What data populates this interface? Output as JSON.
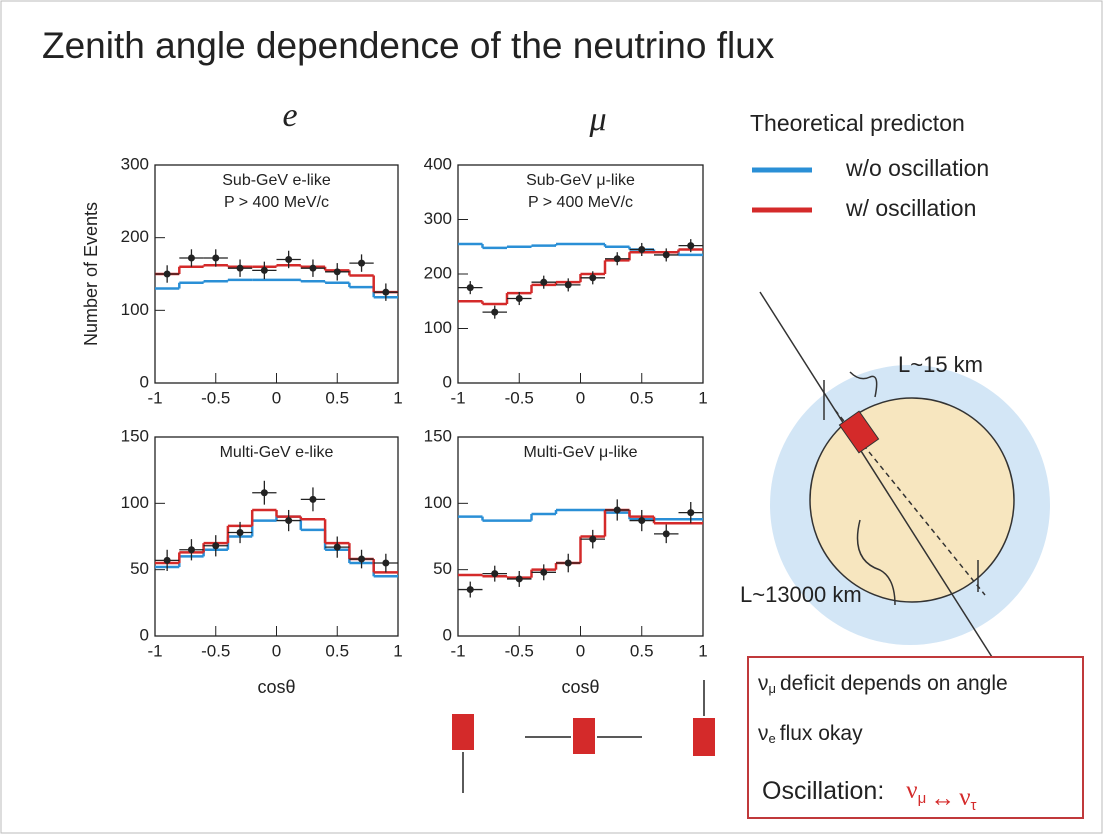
{
  "title": "Zenith angle dependence of the neutrino flux",
  "column_labels": [
    "e",
    "μ"
  ],
  "legend": {
    "title": "Theoretical predicton"
  },
  "diagram": {
    "labels": [
      "L~15 km",
      "L~13000 km"
    ]
  },
  "box": {
    "lines": [
      {
        "symbol": "ν",
        "subscript": "μ",
        "text": "deficit depends on angle"
      },
      {
        "symbol": "ν",
        "subscript": "e",
        "text": "flux okay"
      },
      {
        "text": "Oscillation:",
        "formula": [
          {
            "symbol": "ν",
            "subscript": "μ"
          },
          "↔",
          {
            "symbol": "ν",
            "subscript": "τ"
          }
        ]
      }
    ]
  },
  "chart_data": [
    {
      "type": "histogram",
      "annotations": [
        "Sub-GeV e-like",
        "P > 400 MeV/c"
      ],
      "y_label": "Number of Events",
      "bins": [
        -1,
        -0.8,
        -0.6,
        -0.4,
        -0.2,
        0,
        0.2,
        0.4,
        0.6,
        0.8,
        1
      ],
      "xlim": [
        -1,
        1
      ],
      "xticks": [
        -1,
        -0.5,
        0,
        0.5,
        1
      ],
      "ylim": [
        0,
        300
      ],
      "yticks": [
        0,
        100,
        200,
        300
      ],
      "series": [
        {
          "name": "w/o oscillation",
          "color": "#2a8fd6",
          "values": [
            130,
            138,
            140,
            142,
            142,
            142,
            140,
            138,
            132,
            118
          ]
        },
        {
          "name": "w/ oscillation",
          "color": "#d42a2a",
          "values": [
            150,
            160,
            162,
            160,
            160,
            162,
            160,
            155,
            148,
            125
          ]
        },
        {
          "color": "#222222",
          "values": [
            150,
            172,
            172,
            158,
            155,
            170,
            158,
            153,
            165,
            125
          ],
          "errors": [
            12,
            12,
            12,
            12,
            12,
            12,
            12,
            12,
            12,
            12
          ]
        }
      ]
    },
    {
      "type": "histogram",
      "annotations": [
        "Sub-GeV μ-like",
        "P > 400 MeV/c"
      ],
      "bins": [
        -1,
        -0.8,
        -0.6,
        -0.4,
        -0.2,
        0,
        0.2,
        0.4,
        0.6,
        0.8,
        1
      ],
      "xlim": [
        -1,
        1
      ],
      "xticks": [
        -1,
        -0.5,
        0,
        0.5,
        1
      ],
      "ylim": [
        0,
        400
      ],
      "yticks": [
        0,
        100,
        200,
        300,
        400
      ],
      "series": [
        {
          "color": "#2a8fd6",
          "values": [
            255,
            248,
            250,
            252,
            255,
            255,
            250,
            245,
            240,
            235
          ]
        },
        {
          "color": "#d42a2a",
          "values": [
            150,
            145,
            165,
            180,
            185,
            200,
            225,
            240,
            240,
            245
          ]
        },
        {
          "color": "#222222",
          "values": [
            175,
            130,
            155,
            185,
            180,
            193,
            228,
            245,
            235,
            252
          ],
          "errors": [
            12,
            12,
            12,
            12,
            12,
            12,
            12,
            12,
            12,
            12
          ]
        }
      ]
    },
    {
      "type": "histogram",
      "annotations": [
        "Multi-GeV e-like"
      ],
      "x_label": "cosθ",
      "bins": [
        -1,
        -0.8,
        -0.6,
        -0.4,
        -0.2,
        0,
        0.2,
        0.4,
        0.6,
        0.8,
        1
      ],
      "xlim": [
        -1,
        1
      ],
      "xticks": [
        -1,
        -0.5,
        0,
        0.5,
        1
      ],
      "ylim": [
        0,
        150
      ],
      "yticks": [
        0,
        50,
        100,
        150
      ],
      "series": [
        {
          "color": "#2a8fd6",
          "values": [
            52,
            60,
            65,
            75,
            87,
            90,
            80,
            65,
            55,
            45
          ]
        },
        {
          "color": "#d42a2a",
          "values": [
            55,
            63,
            70,
            83,
            95,
            90,
            88,
            70,
            58,
            48
          ]
        },
        {
          "color": "#222222",
          "values": [
            57,
            65,
            68,
            78,
            108,
            87,
            103,
            67,
            58,
            55
          ],
          "errors": [
            8,
            8,
            8,
            8,
            9,
            8,
            9,
            8,
            7,
            7
          ]
        }
      ]
    },
    {
      "type": "histogram",
      "annotations": [
        "Multi-GeV μ-like"
      ],
      "x_label": "cosθ",
      "bins": [
        -1,
        -0.8,
        -0.6,
        -0.4,
        -0.2,
        0,
        0.2,
        0.4,
        0.6,
        0.8,
        1
      ],
      "xlim": [
        -1,
        1
      ],
      "xticks": [
        -1,
        -0.5,
        0,
        0.5,
        1
      ],
      "ylim": [
        0,
        150
      ],
      "yticks": [
        0,
        50,
        100,
        150
      ],
      "series": [
        {
          "color": "#2a8fd6",
          "values": [
            90,
            87,
            87,
            92,
            95,
            95,
            93,
            88,
            88,
            88
          ]
        },
        {
          "color": "#d42a2a",
          "values": [
            46,
            45,
            44,
            50,
            55,
            75,
            95,
            90,
            85,
            85
          ]
        },
        {
          "color": "#222222",
          "values": [
            35,
            47,
            43,
            48,
            55,
            73,
            95,
            87,
            77,
            93
          ],
          "errors": [
            6,
            6,
            6,
            6,
            7,
            7,
            8,
            8,
            7,
            8
          ]
        }
      ]
    }
  ]
}
